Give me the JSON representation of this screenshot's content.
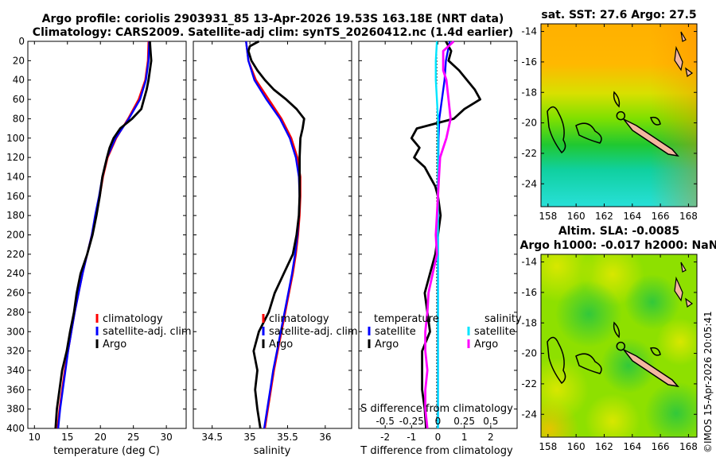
{
  "titles": {
    "line1": "Argo profile: coriolis 2903931_85 13-Apr-2026 19.53S 163.18E (NRT data)",
    "line2": "Climatology: CARS2009. Satellite-adj clim: synTS_20260412.nc (1.4d earlier)"
  },
  "credit": "©IMOS 15-Apr-2026 20:05:41",
  "colors": {
    "climatology": "#ff0000",
    "satellite": "#0000ff",
    "argo": "#000000",
    "sal_sat": "#00e5ff",
    "sal_argo": "#ff00ff",
    "land": "#f4b7a0"
  },
  "chart_data": [
    {
      "type": "line",
      "name": "temperature-profile",
      "xlabel": "temperature (deg C)",
      "ylabel": "",
      "xlim": [
        9,
        33
      ],
      "ylim": [
        400,
        0
      ],
      "xticks": [
        10,
        15,
        20,
        25,
        30
      ],
      "yticks": [
        0,
        20,
        40,
        60,
        80,
        100,
        120,
        140,
        160,
        180,
        200,
        220,
        240,
        260,
        280,
        300,
        320,
        340,
        360,
        380,
        400
      ],
      "legend": [
        "climatology",
        "satellite-adj. clim",
        "Argo"
      ],
      "series": [
        {
          "name": "climatology",
          "depth": [
            0,
            20,
            40,
            60,
            80,
            100,
            120,
            140,
            160,
            180,
            200,
            220,
            240,
            260,
            280,
            300,
            320,
            340,
            360,
            380,
            400
          ],
          "values": [
            27.3,
            27.2,
            26.8,
            25.8,
            24.2,
            22.4,
            21.1,
            20.4,
            19.9,
            19.3,
            18.7,
            18.0,
            17.3,
            16.7,
            16.1,
            15.6,
            15.1,
            14.6,
            14.2,
            13.8,
            13.5
          ]
        },
        {
          "name": "satellite-adj. clim",
          "depth": [
            0,
            20,
            40,
            60,
            80,
            100,
            120,
            140,
            160,
            180,
            200,
            220,
            240,
            260,
            280,
            300,
            320,
            340,
            360,
            380,
            400
          ],
          "values": [
            27.4,
            27.3,
            26.9,
            26.0,
            24.3,
            22.3,
            21.0,
            20.3,
            19.8,
            19.2,
            18.7,
            18.0,
            17.3,
            16.7,
            16.1,
            15.6,
            15.1,
            14.7,
            14.3,
            13.9,
            13.6
          ]
        },
        {
          "name": "Argo",
          "depth": [
            0,
            10,
            20,
            30,
            40,
            50,
            60,
            70,
            80,
            90,
            100,
            110,
            120,
            140,
            160,
            180,
            200,
            220,
            240,
            260,
            280,
            300,
            320,
            340,
            360,
            380,
            400
          ],
          "values": [
            27.5,
            27.6,
            27.7,
            27.5,
            27.3,
            27.0,
            26.6,
            26.2,
            24.8,
            23.0,
            22.0,
            21.4,
            21.0,
            20.3,
            19.9,
            19.4,
            18.8,
            18.0,
            17.0,
            16.4,
            16.0,
            15.4,
            14.9,
            14.2,
            13.8,
            13.4,
            13.2
          ]
        }
      ]
    },
    {
      "type": "line",
      "name": "salinity-profile",
      "xlabel": "salinity",
      "xlim": [
        34.25,
        36.35
      ],
      "ylim": [
        400,
        0
      ],
      "xticks": [
        34.5,
        35,
        35.5,
        36
      ],
      "legend": [
        "climatology",
        "satellite-adj. clim",
        "Argo"
      ],
      "series": [
        {
          "name": "climatology",
          "depth": [
            0,
            20,
            40,
            60,
            80,
            100,
            120,
            140,
            160,
            180,
            200,
            220,
            240,
            260,
            280,
            300,
            320,
            340,
            360,
            380,
            400
          ],
          "values": [
            34.95,
            34.98,
            35.08,
            35.25,
            35.42,
            35.55,
            35.63,
            35.67,
            35.67,
            35.66,
            35.64,
            35.61,
            35.57,
            35.52,
            35.47,
            35.42,
            35.37,
            35.32,
            35.28,
            35.24,
            35.2
          ]
        },
        {
          "name": "satellite-adj. clim",
          "depth": [
            0,
            20,
            40,
            60,
            80,
            100,
            120,
            140,
            160,
            180,
            200,
            220,
            240,
            260,
            280,
            300,
            320,
            340,
            360,
            380,
            400
          ],
          "values": [
            34.95,
            34.98,
            35.06,
            35.22,
            35.4,
            35.53,
            35.61,
            35.65,
            35.66,
            35.65,
            35.63,
            35.6,
            35.56,
            35.51,
            35.46,
            35.41,
            35.36,
            35.31,
            35.27,
            35.23,
            35.19
          ]
        },
        {
          "name": "Argo",
          "depth": [
            0,
            5,
            10,
            20,
            30,
            40,
            50,
            60,
            70,
            80,
            90,
            100,
            120,
            140,
            160,
            180,
            200,
            220,
            240,
            260,
            280,
            300,
            320,
            340,
            360,
            380,
            400
          ],
          "values": [
            35.12,
            35.0,
            34.98,
            35.02,
            35.1,
            35.2,
            35.32,
            35.48,
            35.62,
            35.72,
            35.7,
            35.67,
            35.66,
            35.66,
            35.66,
            35.65,
            35.62,
            35.57,
            35.45,
            35.33,
            35.25,
            35.12,
            35.05,
            35.1,
            35.07,
            35.1,
            35.14
          ]
        }
      ]
    },
    {
      "type": "line",
      "name": "difference-profile",
      "xlabel": "T difference from climatology",
      "xlabel_top": "S difference from climatology",
      "xlim": [
        -3,
        3
      ],
      "ylim": [
        400,
        0
      ],
      "xticks": [
        -2,
        -1,
        0,
        1,
        2
      ],
      "xticks_top": [
        -0.5,
        -0.25,
        0,
        0.25,
        0.5
      ],
      "xticks_top_labels": [
        "-0.5",
        "-0.25",
        "0",
        "0.25",
        "0.5"
      ],
      "s_scale": 4,
      "legend_temperature_title": "temperature",
      "legend_salinity_title": "salinity",
      "legend": [
        "satellite",
        "Argo",
        "satellite",
        "Argo"
      ],
      "series": [
        {
          "name": "T satellite",
          "depth": [
            0,
            20,
            40,
            60,
            80,
            100,
            150,
            200,
            250,
            300,
            350,
            400
          ],
          "values": [
            0.45,
            0.3,
            0.25,
            0.15,
            0.05,
            0.02,
            0.0,
            0.0,
            0.0,
            0.0,
            0.0,
            0.0
          ]
        },
        {
          "name": "T Argo",
          "depth": [
            0,
            10,
            20,
            30,
            40,
            50,
            60,
            70,
            80,
            90,
            100,
            110,
            120,
            130,
            140,
            150,
            160,
            180,
            200,
            220,
            240,
            260,
            280,
            300,
            320,
            340,
            360,
            380,
            400
          ],
          "values": [
            0.3,
            0.5,
            0.4,
            0.8,
            1.1,
            1.4,
            1.6,
            1.0,
            0.6,
            -0.8,
            -1.0,
            -0.7,
            -0.9,
            -0.5,
            -0.3,
            -0.1,
            0.0,
            0.1,
            0.0,
            -0.1,
            -0.3,
            -0.5,
            -0.4,
            -0.3,
            -0.6,
            -0.6,
            -0.6,
            -0.5,
            -0.45
          ]
        },
        {
          "name": "S satellite",
          "depth": [
            0,
            20,
            40,
            60,
            80,
            100,
            150,
            200,
            250,
            300,
            350,
            400
          ],
          "values": [
            -0.01,
            -0.02,
            -0.02,
            -0.01,
            0.0,
            0.0,
            0.0,
            0.0,
            0.0,
            0.0,
            0.0,
            0.0
          ]
        },
        {
          "name": "S Argo",
          "depth": [
            0,
            10,
            20,
            30,
            40,
            60,
            80,
            100,
            120,
            140,
            160,
            180,
            200,
            220,
            240,
            260,
            280,
            300,
            320,
            340,
            360,
            380,
            400
          ],
          "values": [
            0.15,
            0.05,
            0.05,
            0.05,
            0.08,
            0.1,
            0.12,
            0.08,
            0.02,
            0.01,
            0.0,
            -0.01,
            -0.02,
            -0.01,
            -0.05,
            -0.09,
            -0.1,
            -0.12,
            -0.12,
            -0.1,
            -0.12,
            -0.12,
            -0.1
          ]
        }
      ]
    },
    {
      "type": "heatmap",
      "name": "sst-map",
      "title": "sat. SST: 27.6 Argo: 27.5",
      "xticks": [
        158,
        160,
        162,
        164,
        166,
        168
      ],
      "yticks": [
        -14,
        -16,
        -18,
        -20,
        -22,
        -24
      ],
      "xlim": [
        157.5,
        168.6
      ],
      "ylim": [
        -25.5,
        -13.5
      ],
      "marker": {
        "lon": 163.18,
        "lat": -19.53
      }
    },
    {
      "type": "heatmap",
      "name": "sla-map",
      "title1": "Altim. SLA: -0.0085",
      "title2": "Argo h1000: -0.017 h2000: NaN",
      "xticks": [
        158,
        160,
        162,
        164,
        166,
        168
      ],
      "yticks": [
        -14,
        -16,
        -18,
        -20,
        -22,
        -24
      ],
      "xlim": [
        157.5,
        168.6
      ],
      "ylim": [
        -25.5,
        -13.5
      ],
      "marker": {
        "lon": 163.18,
        "lat": -19.53
      }
    }
  ]
}
